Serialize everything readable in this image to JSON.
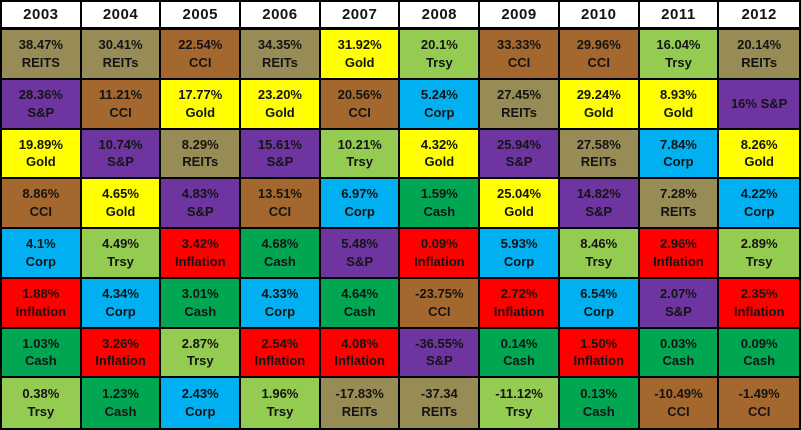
{
  "chart_data": {
    "type": "table",
    "description_visible_text_only": "Annual returns ranked best-to-worst per year column",
    "years": [
      "2003",
      "2004",
      "2005",
      "2006",
      "2007",
      "2008",
      "2009",
      "2010",
      "2011",
      "2012"
    ],
    "asset_colors": {
      "REITs": "#978C56",
      "CCI": "#A4682E",
      "Gold": "#FFFF00",
      "S&P": "#6E35A0",
      "Trsy": "#94CC52",
      "Corp": "#00B0F0",
      "Cash": "#00A651",
      "Inflation": "#FF0000"
    },
    "header_bg": "#FFFFFF",
    "border_color": "#000000",
    "text_color": "#141414",
    "columns": [
      {
        "year": "2003",
        "cells": [
          {
            "v": "38.47%",
            "a": "REITS",
            "k": "REITs"
          },
          {
            "v": "28.36%",
            "a": "S&P",
            "k": "S&P"
          },
          {
            "v": "19.89%",
            "a": "Gold",
            "k": "Gold"
          },
          {
            "v": "8.86%",
            "a": "CCI",
            "k": "CCI"
          },
          {
            "v": "4.1%",
            "a": "Corp",
            "k": "Corp"
          },
          {
            "v": "1.88%",
            "a": "Inflation",
            "k": "Inflation"
          },
          {
            "v": "1.03%",
            "a": "Cash",
            "k": "Cash"
          },
          {
            "v": "0.38%",
            "a": "Trsy",
            "k": "Trsy"
          }
        ]
      },
      {
        "year": "2004",
        "cells": [
          {
            "v": "30.41%",
            "a": "REITs",
            "k": "REITs"
          },
          {
            "v": "11.21%",
            "a": "CCI",
            "k": "CCI"
          },
          {
            "v": "10.74%",
            "a": "S&P",
            "k": "S&P"
          },
          {
            "v": "4.65%",
            "a": "Gold",
            "k": "Gold"
          },
          {
            "v": "4.49%",
            "a": "Trsy",
            "k": "Trsy"
          },
          {
            "v": "4.34%",
            "a": "Corp",
            "k": "Corp"
          },
          {
            "v": "3.26%",
            "a": "Inflation",
            "k": "Inflation"
          },
          {
            "v": "1.23%",
            "a": "Cash",
            "k": "Cash"
          }
        ]
      },
      {
        "year": "2005",
        "cells": [
          {
            "v": "22.54%",
            "a": "CCI",
            "k": "CCI"
          },
          {
            "v": "17.77%",
            "a": "Gold",
            "k": "Gold"
          },
          {
            "v": "8.29%",
            "a": "REITs",
            "k": "REITs"
          },
          {
            "v": "4.83%",
            "a": "S&P",
            "k": "S&P"
          },
          {
            "v": "3.42%",
            "a": "Inflation",
            "k": "Inflation"
          },
          {
            "v": "3.01%",
            "a": "Cash",
            "k": "Cash"
          },
          {
            "v": "2.87%",
            "a": "Trsy",
            "k": "Trsy"
          },
          {
            "v": "2.43%",
            "a": "Corp",
            "k": "Corp"
          }
        ]
      },
      {
        "year": "2006",
        "cells": [
          {
            "v": "34.35%",
            "a": "REITs",
            "k": "REITs"
          },
          {
            "v": "23.20%",
            "a": "Gold",
            "k": "Gold"
          },
          {
            "v": "15.61%",
            "a": "S&P",
            "k": "S&P"
          },
          {
            "v": "13.51%",
            "a": "CCI",
            "k": "CCI"
          },
          {
            "v": "4.68%",
            "a": "Cash",
            "k": "Cash"
          },
          {
            "v": "4.33%",
            "a": "Corp",
            "k": "Corp"
          },
          {
            "v": "2.54%",
            "a": "Inflation",
            "k": "Inflation"
          },
          {
            "v": "1.96%",
            "a": "Trsy",
            "k": "Trsy"
          }
        ]
      },
      {
        "year": "2007",
        "cells": [
          {
            "v": "31.92%",
            "a": "Gold",
            "k": "Gold"
          },
          {
            "v": "20.56%",
            "a": "CCI",
            "k": "CCI"
          },
          {
            "v": "10.21%",
            "a": "Trsy",
            "k": "Trsy"
          },
          {
            "v": "6.97%",
            "a": "Corp",
            "k": "Corp"
          },
          {
            "v": "5.48%",
            "a": "S&P",
            "k": "S&P"
          },
          {
            "v": "4.64%",
            "a": "Cash",
            "k": "Cash"
          },
          {
            "v": "4.08%",
            "a": "Inflation",
            "k": "Inflation"
          },
          {
            "v": "-17.83%",
            "a": "REITs",
            "k": "REITs"
          }
        ]
      },
      {
        "year": "2008",
        "cells": [
          {
            "v": "20.1%",
            "a": "Trsy",
            "k": "Trsy"
          },
          {
            "v": "5.24%",
            "a": "Corp",
            "k": "Corp"
          },
          {
            "v": "4.32%",
            "a": "Gold",
            "k": "Gold"
          },
          {
            "v": "1.59%",
            "a": "Cash",
            "k": "Cash"
          },
          {
            "v": "0.09%",
            "a": "Inflation",
            "k": "Inflation"
          },
          {
            "v": "-23.75%",
            "a": "CCI",
            "k": "CCI"
          },
          {
            "v": "-36.55%",
            "a": "S&P",
            "k": "S&P"
          },
          {
            "v": "-37.34",
            "a": "REITs",
            "k": "REITs"
          }
        ]
      },
      {
        "year": "2009",
        "cells": [
          {
            "v": "33.33%",
            "a": "CCI",
            "k": "CCI"
          },
          {
            "v": "27.45%",
            "a": "REITs",
            "k": "REITs"
          },
          {
            "v": "25.94%",
            "a": "S&P",
            "k": "S&P"
          },
          {
            "v": "25.04%",
            "a": "Gold",
            "k": "Gold"
          },
          {
            "v": "5.93%",
            "a": "Corp",
            "k": "Corp"
          },
          {
            "v": "2.72%",
            "a": "Inflation",
            "k": "Inflation"
          },
          {
            "v": "0.14%",
            "a": "Cash",
            "k": "Cash"
          },
          {
            "v": "-11.12%",
            "a": "Trsy",
            "k": "Trsy"
          }
        ]
      },
      {
        "year": "2010",
        "cells": [
          {
            "v": "29.96%",
            "a": "CCI",
            "k": "CCI"
          },
          {
            "v": "29.24%",
            "a": "Gold",
            "k": "Gold"
          },
          {
            "v": "27.58%",
            "a": "REITs",
            "k": "REITs"
          },
          {
            "v": "14.82%",
            "a": "S&P",
            "k": "S&P"
          },
          {
            "v": "8.46%",
            "a": "Trsy",
            "k": "Trsy"
          },
          {
            "v": "6.54%",
            "a": "Corp",
            "k": "Corp"
          },
          {
            "v": "1.50%",
            "a": "Inflation",
            "k": "Inflation"
          },
          {
            "v": "0.13%",
            "a": "Cash",
            "k": "Cash"
          }
        ]
      },
      {
        "year": "2011",
        "cells": [
          {
            "v": "16.04%",
            "a": "Trsy",
            "k": "Trsy"
          },
          {
            "v": "8.93%",
            "a": "Gold",
            "k": "Gold"
          },
          {
            "v": "7.84%",
            "a": "Corp",
            "k": "Corp"
          },
          {
            "v": "7.28%",
            "a": "REITs",
            "k": "REITs"
          },
          {
            "v": "2.96%",
            "a": "Inflation",
            "k": "Inflation"
          },
          {
            "v": "2.07%",
            "a": "S&P",
            "k": "S&P"
          },
          {
            "v": "0.03%",
            "a": "Cash",
            "k": "Cash"
          },
          {
            "v": "-10.49%",
            "a": "CCI",
            "k": "CCI"
          }
        ]
      },
      {
        "year": "2012",
        "cells": [
          {
            "v": "20.14%",
            "a": "REITs",
            "k": "REITs"
          },
          {
            "v": "16% S&P",
            "a": "",
            "k": "S&P"
          },
          {
            "v": "8.26%",
            "a": "Gold",
            "k": "Gold"
          },
          {
            "v": "4.22%",
            "a": "Corp",
            "k": "Corp"
          },
          {
            "v": "2.89%",
            "a": "Trsy",
            "k": "Trsy"
          },
          {
            "v": "2.35%",
            "a": "Inflation",
            "k": "Inflation"
          },
          {
            "v": "0.09%",
            "a": "Cash",
            "k": "Cash"
          },
          {
            "v": "-1.49%",
            "a": "CCI",
            "k": "CCI"
          }
        ]
      }
    ]
  }
}
